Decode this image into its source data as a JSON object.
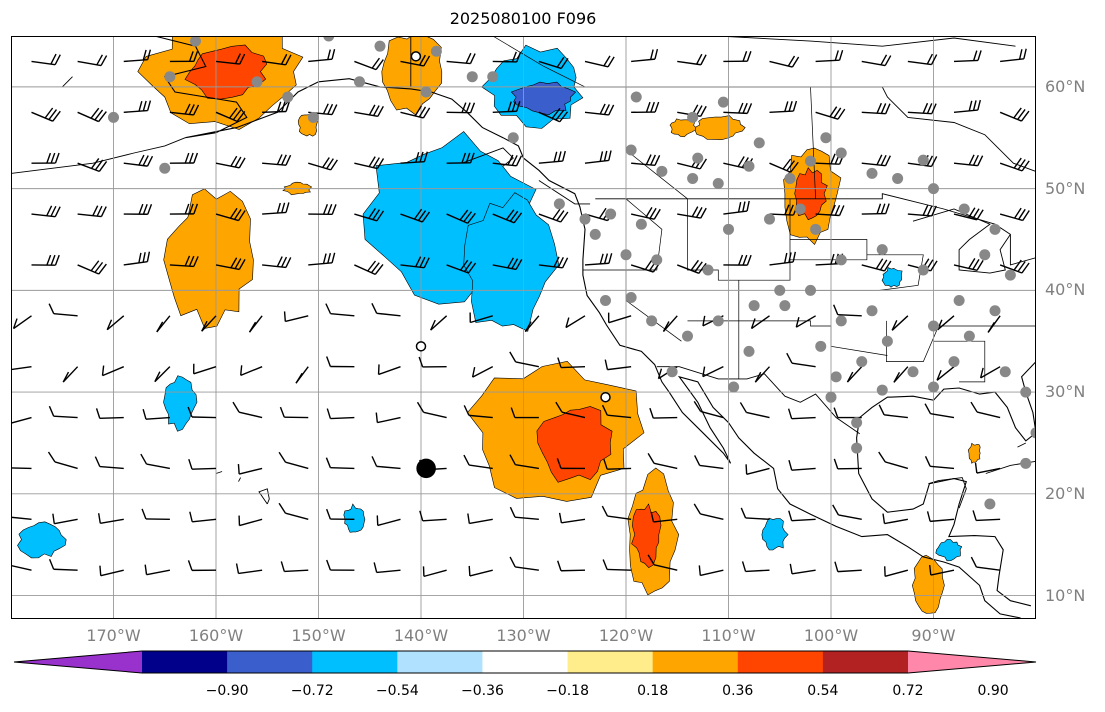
{
  "title": "2025080100 F096",
  "map": {
    "projection": "plate-carree",
    "extent_lon": [
      -180,
      -80
    ],
    "extent_lat": [
      7.7,
      65
    ],
    "gridlines": true,
    "lat_labels": [
      "60°N",
      "50°N",
      "40°N",
      "30°N",
      "20°N",
      "10°N"
    ],
    "lon_labels": [
      "170°W",
      "160°W",
      "150°W",
      "140°W",
      "130°W",
      "120°W",
      "110°W",
      "100°W",
      "90°W"
    ],
    "lat_values": [
      60,
      50,
      40,
      30,
      20,
      10
    ],
    "lon_values": [
      -170,
      -160,
      -150,
      -140,
      -130,
      -120,
      -110,
      -100,
      -90
    ],
    "overlays": [
      "coastlines",
      "country-borders",
      "state-borders",
      "wind-barbs",
      "station-markers",
      "anomaly-contours"
    ]
  },
  "colorbar": {
    "extend": "both",
    "tick_labels": [
      "−0.90",
      "−0.72",
      "−0.54",
      "−0.36",
      "−0.18",
      "0.18",
      "0.36",
      "0.54",
      "0.72",
      "0.90"
    ],
    "levels": [
      -0.9,
      -0.72,
      -0.54,
      -0.36,
      -0.18,
      0.18,
      0.36,
      0.54,
      0.72,
      0.9
    ],
    "colors": [
      "#9932cc",
      "#00008b",
      "#3a5fcd",
      "#00bfff",
      "#b0e2ff",
      "#ffffff",
      "#ffec8b",
      "#ffa500",
      "#ff4500",
      "#b22222",
      "#ff88aa"
    ]
  },
  "field_blobs": [
    {
      "lon": -159,
      "lat": 61.5,
      "value": 0.5
    },
    {
      "lon": -159,
      "lat": 61.5,
      "value": 0.6
    },
    {
      "lon": -141,
      "lat": 61.5,
      "value": 0.45
    },
    {
      "lon": -129,
      "lat": 60,
      "value": -0.45
    },
    {
      "lon": -128,
      "lat": 59,
      "value": -0.6
    },
    {
      "lon": -111,
      "lat": 56,
      "value": 0.45
    },
    {
      "lon": -102,
      "lat": 49.5,
      "value": 0.5
    },
    {
      "lon": -102,
      "lat": 49.5,
      "value": 0.6
    },
    {
      "lon": -160.5,
      "lat": 43,
      "value": 0.45
    },
    {
      "lon": -137,
      "lat": 47.5,
      "value": -0.45
    },
    {
      "lon": -131.5,
      "lat": 42.5,
      "value": -0.45
    },
    {
      "lon": -127,
      "lat": 26,
      "value": 0.45
    },
    {
      "lon": -125,
      "lat": 25,
      "value": 0.6
    },
    {
      "lon": -163.5,
      "lat": 29,
      "value": -0.45
    },
    {
      "lon": -117.5,
      "lat": 16,
      "value": 0.45
    },
    {
      "lon": -118,
      "lat": 16,
      "value": 0.6
    },
    {
      "lon": -177,
      "lat": 15.5,
      "value": -0.45
    },
    {
      "lon": -90.5,
      "lat": 11,
      "value": 0.45
    },
    {
      "lon": -146.5,
      "lat": 17.5,
      "value": -0.45
    },
    {
      "lon": -105.5,
      "lat": 16,
      "value": -0.45
    },
    {
      "lon": -88.5,
      "lat": 14.5,
      "value": -0.45
    },
    {
      "lon": -94,
      "lat": 41.3,
      "value": -0.45
    },
    {
      "lon": -152,
      "lat": 50,
      "value": 0.45
    },
    {
      "lon": -151,
      "lat": 56.3,
      "value": 0.45
    },
    {
      "lon": -114.5,
      "lat": 56,
      "value": 0.45
    },
    {
      "lon": -86,
      "lat": 24,
      "value": 0.45
    }
  ],
  "stations": [
    [
      -162,
      64.5
    ],
    [
      -164.5,
      61
    ],
    [
      -156,
      60.5
    ],
    [
      -153,
      59
    ],
    [
      -146,
      60.5
    ],
    [
      -139.5,
      59.5
    ],
    [
      -135,
      61
    ],
    [
      -144,
      64
    ],
    [
      -170,
      57
    ],
    [
      -165,
      52
    ],
    [
      -150.5,
      57
    ],
    [
      -119,
      59
    ],
    [
      -119.5,
      53.8
    ],
    [
      -113,
      53
    ],
    [
      -113.5,
      51
    ],
    [
      -116.5,
      51.7
    ],
    [
      -111,
      50.5
    ],
    [
      -108,
      52.2
    ],
    [
      -104,
      51
    ],
    [
      -102,
      52.7
    ],
    [
      -99,
      53.5
    ],
    [
      -96,
      51.5
    ],
    [
      -93.5,
      51
    ],
    [
      -91,
      52.8
    ],
    [
      -90,
      50
    ],
    [
      -87,
      48
    ],
    [
      -84,
      46
    ],
    [
      -85,
      43.5
    ],
    [
      -82.5,
      41.5
    ],
    [
      -84,
      38
    ],
    [
      -87.5,
      39
    ],
    [
      -90,
      36.5
    ],
    [
      -91,
      42
    ],
    [
      -95,
      44
    ],
    [
      -99,
      43
    ],
    [
      -101.5,
      46
    ],
    [
      -103,
      48
    ],
    [
      -106,
      47
    ],
    [
      -110,
      46
    ],
    [
      -112,
      42
    ],
    [
      -117,
      43
    ],
    [
      -120,
      43.5
    ],
    [
      -122,
      39
    ],
    [
      -119.5,
      39.3
    ],
    [
      -117.5,
      37
    ],
    [
      -114,
      35.5
    ],
    [
      -111,
      37
    ],
    [
      -108,
      34
    ],
    [
      -104.5,
      38.5
    ],
    [
      -102,
      40
    ],
    [
      -99,
      37
    ],
    [
      -96,
      38
    ],
    [
      -94.5,
      35
    ],
    [
      -97,
      33
    ],
    [
      -99.5,
      31.5
    ],
    [
      -100,
      29.5
    ],
    [
      -97.5,
      27
    ],
    [
      -97.5,
      24.5
    ],
    [
      -95,
      30.2
    ],
    [
      -92,
      32
    ],
    [
      -90,
      30.5
    ],
    [
      -88,
      33
    ],
    [
      -86.5,
      35.5
    ],
    [
      -83,
      32
    ],
    [
      -81,
      30
    ],
    [
      -80,
      26
    ],
    [
      -81,
      23
    ],
    [
      -84.5,
      19
    ],
    [
      -107.5,
      38.5
    ],
    [
      -105,
      40
    ],
    [
      -123,
      45.5
    ],
    [
      -121.5,
      47.5
    ],
    [
      -118.5,
      46.5
    ],
    [
      -115.5,
      32
    ],
    [
      -109.5,
      30.5
    ],
    [
      -113.5,
      57
    ],
    [
      -100.5,
      55
    ],
    [
      -107,
      54.5
    ],
    [
      -110.5,
      58.5
    ],
    [
      -124,
      47
    ],
    [
      -126.5,
      48.5
    ],
    [
      -131,
      55
    ],
    [
      -133,
      61
    ],
    [
      -138.5,
      63.5
    ],
    [
      -149,
      65
    ],
    [
      -154.5,
      65.5
    ],
    [
      -101,
      34.5
    ]
  ],
  "special_markers": [
    {
      "lon": -139.5,
      "lat": 22.5,
      "kind": "filled",
      "size": "large"
    },
    {
      "lon": -140,
      "lat": 34.5,
      "kind": "open",
      "size": "small"
    },
    {
      "lon": -122,
      "lat": 29.5,
      "kind": "open",
      "size": "small"
    },
    {
      "lon": -140.5,
      "lat": 63,
      "kind": "open",
      "size": "small"
    }
  ]
}
